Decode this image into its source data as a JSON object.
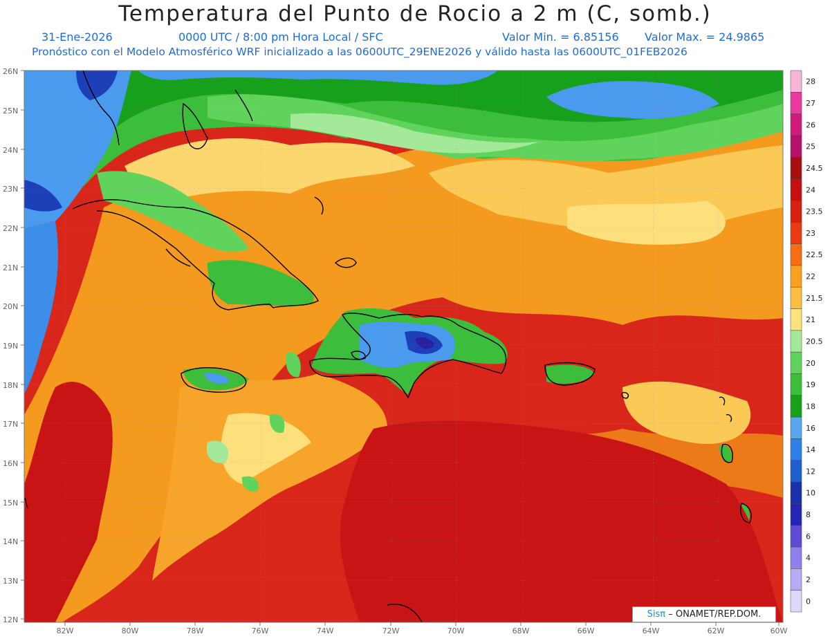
{
  "header": {
    "title": "Temperatura del Punto de Rocio a 2 m (C, somb.)",
    "date": "31-Ene-2026",
    "time": "0000 UTC / 8:00 pm Hora Local / SFC",
    "min_label": "Valor Min. = 6.85156",
    "max_label": "Valor Max. = 24.9865",
    "model_line": "Pronóstico con el Modelo Atmosférico WRF inicializado a las 0600UTC_29ENE2026 y válido hasta las  0600UTC_01FEB2026"
  },
  "axes": {
    "lat_labels": [
      "26N",
      "25N",
      "24N",
      "23N",
      "22N",
      "21N",
      "20N",
      "19N",
      "18N",
      "17N",
      "16N",
      "15N",
      "14N",
      "13N",
      "12N"
    ],
    "lon_labels": [
      "82W",
      "80W",
      "78W",
      "76W",
      "74W",
      "72W",
      "70W",
      "68W",
      "66W",
      "64W",
      "62W",
      "60W"
    ]
  },
  "colorbar": {
    "labels": [
      "28",
      "27",
      "26",
      "25",
      "24.5",
      "24",
      "23.5",
      "23",
      "22.5",
      "22",
      "21.5",
      "21",
      "20.5",
      "20",
      "19",
      "18",
      "16",
      "14",
      "12",
      "10",
      "8",
      "6",
      "4",
      "2",
      "0"
    ],
    "colors": [
      "#f7b6d8",
      "#ea3aa0",
      "#d11a7c",
      "#b4126a",
      "#a50f0f",
      "#c41010",
      "#d82010",
      "#eb3a12",
      "#f66d12",
      "#f9a11e",
      "#fbbd43",
      "#fde27e",
      "#a4e89a",
      "#5fd35b",
      "#3cbd3c",
      "#17a01c",
      "#5aa6ec",
      "#2f80e6",
      "#1d5fd0",
      "#1a2fa8",
      "#2424b6",
      "#5d4bd3",
      "#8e80ea",
      "#b9aaf4",
      "#dbd8f8"
    ]
  },
  "credit": {
    "brand": "Sisπ",
    "text": "ONAMET/REP.DOM."
  },
  "map_colors": {
    "ocean_red": "#d81e12",
    "deep_red": "#c81010",
    "orange": "#f7a021",
    "yellow": "#fde07c",
    "green": "#3cbd3c",
    "blue": "#4a9aee",
    "navy": "#2a1f9e"
  }
}
